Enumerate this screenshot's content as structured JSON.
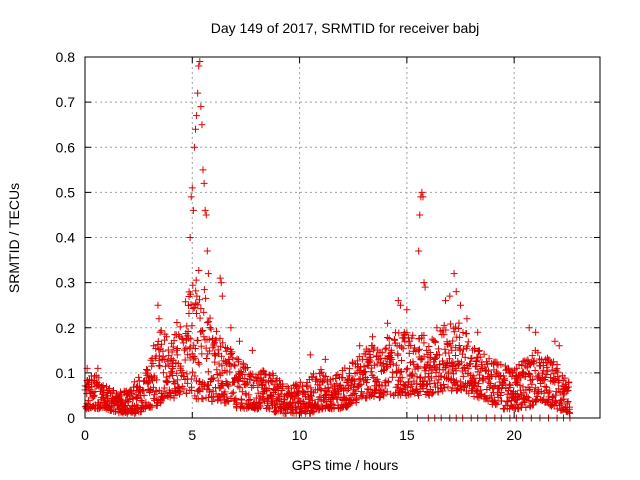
{
  "chart_data": {
    "type": "scatter",
    "title": "Day 149 of 2017, SRMTID for receiver babj",
    "xlabel": "GPS time / hours",
    "ylabel": "SRMTID / TECUs",
    "xlim": [
      0,
      24
    ],
    "ylim": [
      0,
      0.8
    ],
    "xticks": [
      0,
      5,
      10,
      15,
      20
    ],
    "yticks": [
      0,
      0.1,
      0.2,
      0.3,
      0.4,
      0.5,
      0.6,
      0.7,
      0.8
    ],
    "grid": true,
    "marker": "+",
    "series": [
      {
        "name": "SRMTID",
        "color": "#e00000",
        "envelope": {
          "note": "approximate per-time-bin low/high extent of the dense point cloud",
          "x": [
            0,
            0.5,
            1,
            1.5,
            2,
            2.5,
            3,
            3.5,
            4,
            4.5,
            5,
            5.25,
            5.5,
            6,
            6.5,
            7,
            7.5,
            8,
            8.5,
            9,
            9.5,
            10,
            10.5,
            11,
            11.5,
            12,
            12.5,
            13,
            13.5,
            14,
            14.5,
            15,
            15.5,
            16,
            16.5,
            17,
            17.5,
            18,
            18.5,
            19,
            19.5,
            20,
            20.5,
            21,
            21.5,
            22,
            22.5
          ],
          "low": [
            0.02,
            0.02,
            0.02,
            0.01,
            0.01,
            0.01,
            0.02,
            0.03,
            0.04,
            0.05,
            0.05,
            0.04,
            0.04,
            0.03,
            0.03,
            0.02,
            0.02,
            0.02,
            0.02,
            0.01,
            0.01,
            0.01,
            0.01,
            0.02,
            0.02,
            0.02,
            0.03,
            0.04,
            0.04,
            0.05,
            0.05,
            0.05,
            0.05,
            0.05,
            0.05,
            0.06,
            0.06,
            0.05,
            0.04,
            0.03,
            0.02,
            0.02,
            0.02,
            0.03,
            0.03,
            0.02,
            0.01
          ],
          "high": [
            0.09,
            0.1,
            0.07,
            0.06,
            0.06,
            0.08,
            0.12,
            0.2,
            0.17,
            0.26,
            0.3,
            0.35,
            0.3,
            0.2,
            0.18,
            0.14,
            0.12,
            0.1,
            0.11,
            0.09,
            0.07,
            0.08,
            0.1,
            0.11,
            0.1,
            0.11,
            0.13,
            0.15,
            0.17,
            0.18,
            0.19,
            0.2,
            0.19,
            0.18,
            0.2,
            0.22,
            0.21,
            0.17,
            0.15,
            0.13,
            0.12,
            0.11,
            0.13,
            0.15,
            0.14,
            0.12,
            0.08
          ]
        },
        "spikes": [
          {
            "x": 0.1,
            "y": 0.11
          },
          {
            "x": 0.6,
            "y": 0.11
          },
          {
            "x": 2.3,
            "y": 0.08
          },
          {
            "x": 2.5,
            "y": 0.09
          },
          {
            "x": 3.2,
            "y": 0.16
          },
          {
            "x": 3.4,
            "y": 0.25
          },
          {
            "x": 3.45,
            "y": 0.22
          },
          {
            "x": 3.5,
            "y": 0.19
          },
          {
            "x": 4.0,
            "y": 0.1
          },
          {
            "x": 4.3,
            "y": 0.14
          },
          {
            "x": 4.9,
            "y": 0.4
          },
          {
            "x": 4.95,
            "y": 0.49
          },
          {
            "x": 5.0,
            "y": 0.51
          },
          {
            "x": 5.05,
            "y": 0.46
          },
          {
            "x": 5.1,
            "y": 0.6
          },
          {
            "x": 5.15,
            "y": 0.64
          },
          {
            "x": 5.2,
            "y": 0.67
          },
          {
            "x": 5.25,
            "y": 0.72
          },
          {
            "x": 5.3,
            "y": 0.78
          },
          {
            "x": 5.35,
            "y": 0.79
          },
          {
            "x": 5.4,
            "y": 0.69
          },
          {
            "x": 5.45,
            "y": 0.65
          },
          {
            "x": 5.5,
            "y": 0.55
          },
          {
            "x": 5.55,
            "y": 0.52
          },
          {
            "x": 5.6,
            "y": 0.46
          },
          {
            "x": 5.65,
            "y": 0.45
          },
          {
            "x": 5.7,
            "y": 0.37
          },
          {
            "x": 5.75,
            "y": 0.32
          },
          {
            "x": 6.3,
            "y": 0.31
          },
          {
            "x": 6.35,
            "y": 0.3
          },
          {
            "x": 6.4,
            "y": 0.27
          },
          {
            "x": 6.8,
            "y": 0.2
          },
          {
            "x": 7.2,
            "y": 0.17
          },
          {
            "x": 7.8,
            "y": 0.15
          },
          {
            "x": 10.5,
            "y": 0.14
          },
          {
            "x": 11.2,
            "y": 0.13
          },
          {
            "x": 12.8,
            "y": 0.16
          },
          {
            "x": 13.4,
            "y": 0.18
          },
          {
            "x": 14.1,
            "y": 0.21
          },
          {
            "x": 14.6,
            "y": 0.26
          },
          {
            "x": 14.7,
            "y": 0.25
          },
          {
            "x": 15.0,
            "y": 0.24
          },
          {
            "x": 15.55,
            "y": 0.37
          },
          {
            "x": 15.6,
            "y": 0.45
          },
          {
            "x": 15.65,
            "y": 0.49
          },
          {
            "x": 15.7,
            "y": 0.5
          },
          {
            "x": 15.75,
            "y": 0.49
          },
          {
            "x": 15.8,
            "y": 0.3
          },
          {
            "x": 15.85,
            "y": 0.29
          },
          {
            "x": 16.4,
            "y": 0.2
          },
          {
            "x": 16.8,
            "y": 0.26
          },
          {
            "x": 17.0,
            "y": 0.27
          },
          {
            "x": 17.2,
            "y": 0.32
          },
          {
            "x": 17.3,
            "y": 0.28
          },
          {
            "x": 17.5,
            "y": 0.25
          },
          {
            "x": 17.8,
            "y": 0.22
          },
          {
            "x": 18.3,
            "y": 0.19
          },
          {
            "x": 20.7,
            "y": 0.2
          },
          {
            "x": 21.0,
            "y": 0.19
          },
          {
            "x": 21.9,
            "y": 0.17
          },
          {
            "x": 22.1,
            "y": 0.16
          }
        ],
        "floor_points": {
          "note": "points sitting at ~0 in the 15-22.5 h span",
          "x": [
            15.5,
            16.0,
            16.3,
            16.6,
            17.0,
            17.3,
            17.6,
            18.0,
            18.3,
            18.7,
            19.1,
            19.4,
            19.8,
            20.1,
            20.4,
            20.8,
            21.2,
            21.6,
            22.0,
            22.3,
            22.6
          ],
          "y": 0.0
        }
      }
    ]
  }
}
